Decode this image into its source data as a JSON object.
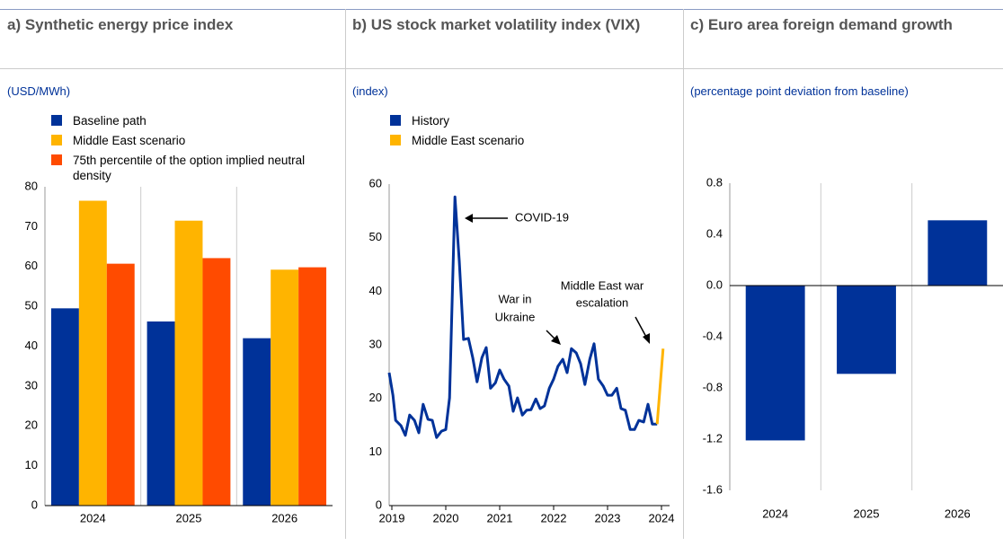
{
  "chart_data": [
    {
      "type": "bar",
      "title": "a) Synthetic energy price index",
      "subtitle": "(USD/MWh)",
      "categories": [
        "2024",
        "2025",
        "2026"
      ],
      "series": [
        {
          "name": "Baseline path",
          "color": "#003299",
          "values": [
            49.5,
            46.2,
            42.0
          ]
        },
        {
          "name": "Middle East scenario",
          "color": "#ffb400",
          "values": [
            76.5,
            71.5,
            59.2
          ]
        },
        {
          "name": "75th percentile of the option implied neutral density",
          "color": "#ff4b00",
          "values": [
            60.7,
            62.1,
            59.8
          ]
        }
      ],
      "ylim": [
        0,
        80
      ],
      "yticks": [
        0,
        10,
        20,
        30,
        40,
        50,
        60,
        70,
        80
      ],
      "grid": false
    },
    {
      "type": "line",
      "title": "b) US stock market volatility index (VIX)",
      "subtitle": "(index)",
      "xlim": [
        2018.95,
        2024.15
      ],
      "xticks": [
        2019,
        2020,
        2021,
        2022,
        2023,
        2024
      ],
      "ylim": [
        0,
        60
      ],
      "yticks": [
        0,
        10,
        20,
        30,
        40,
        50,
        60
      ],
      "grid": false,
      "series": [
        {
          "name": "History",
          "color": "#003299",
          "x": [
            2018.95,
            2019.02,
            2019.07,
            2019.17,
            2019.25,
            2019.33,
            2019.42,
            2019.5,
            2019.58,
            2019.67,
            2019.75,
            2019.83,
            2019.92,
            2020.0,
            2020.07,
            2020.17,
            2020.25,
            2020.33,
            2020.42,
            2020.5,
            2020.58,
            2020.67,
            2020.75,
            2020.83,
            2020.92,
            2021.0,
            2021.08,
            2021.17,
            2021.25,
            2021.33,
            2021.42,
            2021.5,
            2021.58,
            2021.67,
            2021.75,
            2021.83,
            2021.92,
            2022.0,
            2022.08,
            2022.17,
            2022.25,
            2022.33,
            2022.42,
            2022.5,
            2022.58,
            2022.67,
            2022.75,
            2022.83,
            2022.92,
            2023.0,
            2023.08,
            2023.17,
            2023.25,
            2023.33,
            2023.42,
            2023.5,
            2023.58,
            2023.67,
            2023.75,
            2023.83,
            2023.92
          ],
          "values": [
            24.8,
            20.6,
            15.9,
            14.9,
            13.1,
            16.9,
            15.9,
            13.6,
            18.9,
            16.1,
            15.9,
            12.7,
            13.9,
            14.2,
            20.1,
            57.6,
            45.7,
            31.0,
            31.2,
            27.6,
            23.1,
            27.6,
            29.5,
            21.9,
            22.9,
            25.3,
            23.6,
            22.3,
            17.6,
            20.1,
            16.9,
            17.8,
            17.9,
            19.9,
            18.1,
            18.6,
            21.9,
            23.6,
            26.0,
            27.3,
            24.8,
            29.3,
            28.5,
            26.5,
            22.6,
            27.3,
            30.2,
            23.6,
            22.3,
            20.6,
            20.6,
            21.9,
            18.1,
            17.8,
            14.2,
            14.2,
            15.9,
            15.6,
            18.9,
            15.2,
            15.2
          ]
        },
        {
          "name": "Middle East scenario",
          "color": "#ffb400",
          "x": [
            2023.92,
            2024.03
          ],
          "values": [
            15.2,
            29.3
          ]
        }
      ],
      "annotations": [
        [
          "COVID-19"
        ],
        [
          "War in",
          "Ukraine"
        ],
        [
          "Middle East war",
          "escalation"
        ]
      ]
    },
    {
      "type": "bar",
      "title": "c) Euro area foreign demand growth",
      "subtitle": "(percentage point deviation from baseline)",
      "categories": [
        "2024",
        "2025",
        "2026"
      ],
      "values": [
        -1.21,
        -0.69,
        0.51
      ],
      "color": "#003299",
      "ylim": [
        -1.6,
        0.8
      ],
      "yticks": [
        -1.6,
        -1.2,
        -0.8,
        -0.4,
        {
          "value": 0,
          "label": "0.0"
        },
        0.4,
        0.8
      ],
      "grid": false
    }
  ]
}
